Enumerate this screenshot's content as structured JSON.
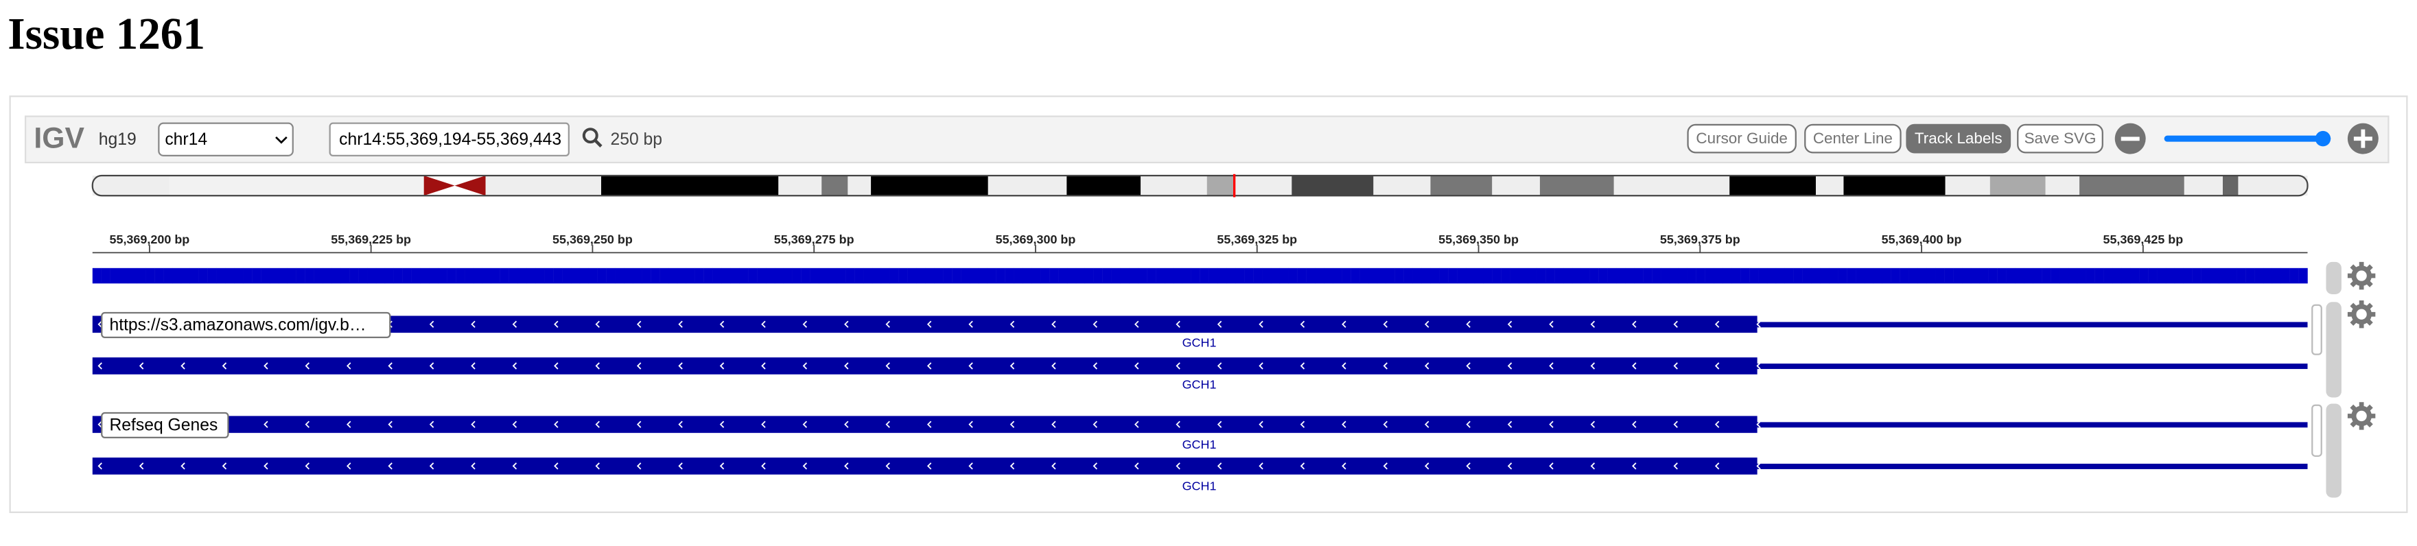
{
  "header": {
    "title": "Issue 1261"
  },
  "navbar": {
    "logo": "IGV",
    "genome": "hg19",
    "chromosome": "chr14",
    "locus": "chr14:55,369,194-55,369,443",
    "window_size": "250 bp",
    "buttons": [
      "Cursor Guide",
      "Center Line",
      "Track Labels",
      "Save SVG"
    ]
  },
  "ruler": {
    "ticks": [
      "55,369,200 bp",
      "55,369,225 bp",
      "55,369,250 bp",
      "55,369,275 bp",
      "55,369,300 bp",
      "55,369,325 bp",
      "55,369,350 bp",
      "55,369,375 bp",
      "55,369,400 bp",
      "55,369,425 bp"
    ]
  },
  "tracks": [
    {
      "label": "https://s3.amazonaws.com/igv.b…",
      "features": [
        "GCH1",
        "GCH1"
      ]
    },
    {
      "label": "Refseq Genes",
      "features": [
        "GCH1",
        "GCH1"
      ]
    }
  ]
}
